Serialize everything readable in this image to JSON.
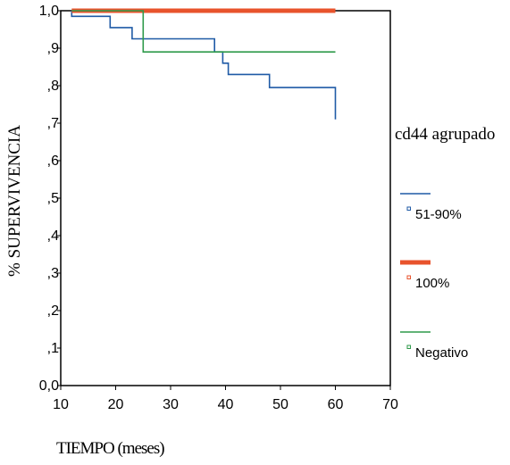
{
  "chart_data": {
    "type": "line",
    "title": "",
    "xlabel": "TIEMPO (meses)",
    "ylabel": "% SUPERVIVENCIA",
    "xlim": [
      10,
      70
    ],
    "ylim": [
      0.0,
      1.0
    ],
    "x_ticks": [
      "10",
      "20",
      "30",
      "40",
      "50",
      "60",
      "70"
    ],
    "y_ticks": [
      "0,0",
      ",1",
      ",2",
      ",3",
      ",4",
      ",5",
      ",6",
      ",7",
      ",8",
      ",9",
      "1,0"
    ],
    "legend": {
      "title": "cd44 agrupado",
      "placement": "right"
    },
    "series": [
      {
        "name": "51-90%",
        "color": "#1f5aa6",
        "points": [
          [
            12,
            1.0
          ],
          [
            12,
            0.985
          ],
          [
            19,
            0.985
          ],
          [
            19,
            0.955
          ],
          [
            23,
            0.955
          ],
          [
            23,
            0.925
          ],
          [
            38,
            0.925
          ],
          [
            38,
            0.89
          ],
          [
            39.5,
            0.89
          ],
          [
            39.5,
            0.86
          ],
          [
            40.5,
            0.86
          ],
          [
            40.5,
            0.83
          ],
          [
            48,
            0.83
          ],
          [
            48,
            0.795
          ],
          [
            60,
            0.795
          ],
          [
            60,
            0.71
          ]
        ]
      },
      {
        "name": "100%",
        "color": "#e8532c",
        "points": [
          [
            12,
            1.0
          ],
          [
            60,
            1.0
          ]
        ]
      },
      {
        "name": "Negativo",
        "color": "#2e9a4a",
        "points": [
          [
            12,
            1.0
          ],
          [
            25,
            1.0
          ],
          [
            25,
            0.89
          ],
          [
            60,
            0.89
          ]
        ]
      }
    ]
  }
}
